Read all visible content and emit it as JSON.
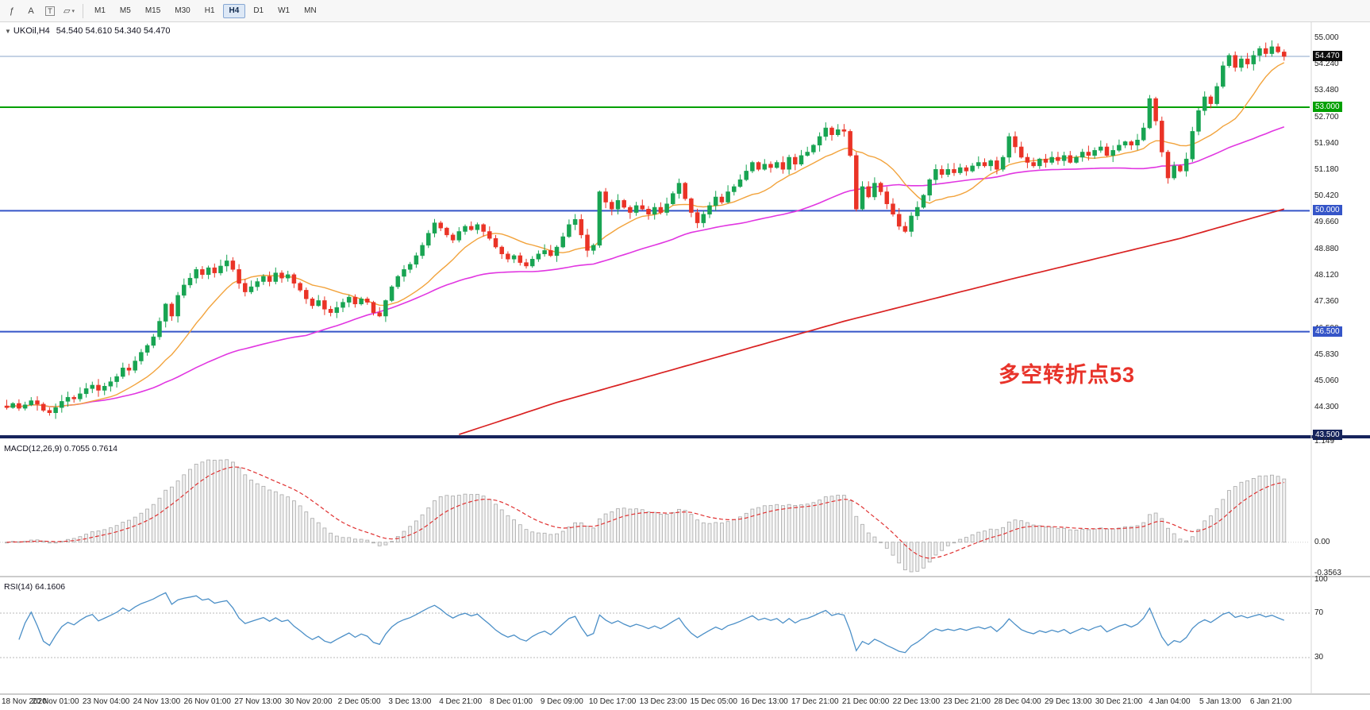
{
  "ui": {
    "toolbar": {
      "tools": [
        {
          "name": "indicators-icon",
          "glyph": "ƒ"
        },
        {
          "name": "text-tool-icon",
          "glyph": "A"
        },
        {
          "name": "label-tool-icon",
          "glyph": "T",
          "boxed": true
        },
        {
          "name": "shapes-tool-icon",
          "glyph": "▱",
          "caret": true
        }
      ],
      "timeframes": [
        {
          "label": "M1"
        },
        {
          "label": "M5"
        },
        {
          "label": "M15"
        },
        {
          "label": "M30"
        },
        {
          "label": "H1"
        },
        {
          "label": "H4",
          "active": true
        },
        {
          "label": "D1"
        },
        {
          "label": "W1"
        },
        {
          "label": "MN"
        }
      ]
    },
    "chart_header": {
      "symbol_title": "UKOil,H4",
      "ohlc_values": "54.540 54.610 54.340 54.470"
    },
    "panels": {
      "macd_label": "MACD(12,26,9) 0.7055 0.7614",
      "rsi_label": "RSI(14) 64.1606"
    },
    "annotation": {
      "text": "多空转折点53",
      "color": "#e8332a"
    }
  },
  "chart_data": {
    "type": "candlestick",
    "symbol": "UKOil",
    "timeframe": "H4",
    "ylim": [
      43.5,
      55.0
    ],
    "first_open": 44.35,
    "price_ticks": [
      55.0,
      54.24,
      53.48,
      52.7,
      51.94,
      51.18,
      50.42,
      49.66,
      48.88,
      48.12,
      47.36,
      46.59,
      45.83,
      45.06,
      44.3,
      43.53
    ],
    "levels": [
      {
        "price": 54.47,
        "label": "54.470",
        "color": "#8aa4c8",
        "badge_bg": "#0b0b0b",
        "line_width": 1
      },
      {
        "price": 53.0,
        "label": "53.000",
        "color": "#00a000",
        "badge_bg": "#00a000",
        "line_width": 2
      },
      {
        "price": 50.0,
        "label": "50.000",
        "color": "#3555c8",
        "badge_bg": "#3555c8",
        "line_width": 2
      },
      {
        "price": 46.5,
        "label": "46.500",
        "color": "#3555c8",
        "badge_bg": "#3555c8",
        "line_width": 2
      },
      {
        "price": 43.5,
        "label": "43.500",
        "color": "#16245c",
        "badge_bg": "#16245c",
        "line_width": 0
      }
    ],
    "colors": {
      "up": "#18a452",
      "down": "#ea3326"
    },
    "ma": {
      "fast_period": 13,
      "fast_color": "#f2a33c",
      "mid_period": 50,
      "mid_color": "#e136e1",
      "slow_color": "#d92121",
      "slow_points": [
        [
          74,
          43.52
        ],
        [
          90,
          44.45
        ],
        [
          110,
          45.45
        ],
        [
          137,
          46.8
        ],
        [
          165,
          48.05
        ],
        [
          192,
          49.2
        ],
        [
          209,
          50.05
        ]
      ]
    },
    "closes": [
      44.3,
      44.42,
      44.28,
      44.38,
      44.5,
      44.4,
      44.22,
      44.15,
      44.3,
      44.48,
      44.6,
      44.55,
      44.7,
      44.85,
      44.95,
      44.8,
      44.92,
      45.05,
      45.2,
      45.45,
      45.38,
      45.65,
      45.9,
      46.1,
      46.35,
      46.8,
      47.3,
      46.95,
      47.55,
      47.85,
      48.05,
      48.3,
      48.15,
      48.35,
      48.2,
      48.4,
      48.55,
      48.3,
      47.9,
      47.65,
      47.8,
      47.95,
      48.1,
      47.95,
      48.2,
      48.05,
      48.15,
      47.9,
      47.7,
      47.45,
      47.25,
      47.4,
      47.15,
      47.05,
      47.2,
      47.35,
      47.5,
      47.3,
      47.45,
      47.35,
      47.05,
      46.95,
      47.4,
      47.8,
      48.1,
      48.3,
      48.45,
      48.7,
      49.0,
      49.35,
      49.65,
      49.5,
      49.3,
      49.15,
      49.4,
      49.55,
      49.45,
      49.6,
      49.4,
      49.2,
      48.95,
      48.75,
      48.6,
      48.7,
      48.5,
      48.4,
      48.6,
      48.75,
      48.85,
      48.7,
      48.95,
      49.25,
      49.6,
      49.75,
      49.3,
      48.85,
      49.0,
      50.55,
      50.25,
      50.05,
      50.3,
      50.1,
      49.95,
      50.15,
      50.05,
      49.9,
      50.1,
      49.95,
      50.2,
      50.5,
      50.8,
      50.35,
      49.95,
      49.65,
      49.9,
      50.15,
      50.4,
      50.25,
      50.55,
      50.7,
      50.9,
      51.15,
      51.4,
      51.2,
      51.35,
      51.25,
      51.4,
      51.2,
      51.55,
      51.35,
      51.6,
      51.7,
      51.9,
      52.15,
      52.4,
      52.2,
      52.35,
      52.3,
      51.6,
      50.05,
      50.7,
      50.4,
      50.8,
      50.55,
      50.2,
      49.9,
      49.55,
      49.4,
      49.85,
      50.1,
      50.45,
      50.9,
      51.2,
      51.05,
      51.2,
      51.1,
      51.25,
      51.15,
      51.3,
      51.4,
      51.3,
      51.45,
      51.2,
      51.55,
      52.15,
      51.85,
      51.55,
      51.4,
      51.3,
      51.5,
      51.4,
      51.55,
      51.45,
      51.6,
      51.4,
      51.55,
      51.7,
      51.6,
      51.75,
      51.85,
      51.6,
      51.75,
      51.9,
      52.0,
      51.9,
      52.05,
      52.4,
      53.25,
      52.6,
      51.7,
      50.95,
      51.3,
      51.15,
      51.5,
      52.3,
      52.9,
      53.3,
      53.1,
      53.6,
      54.2,
      54.5,
      54.15,
      54.4,
      54.25,
      54.5,
      54.7,
      54.55,
      54.75,
      54.6,
      54.47
    ],
    "indicators": {
      "macd": {
        "fast": 12,
        "slow": 26,
        "signal": 9,
        "value_main": 0.7055,
        "value_signal": 0.7614,
        "scale_max": 1.149,
        "scale_min": -0.3563,
        "tick_values": [
          1.149,
          0,
          -0.3563
        ],
        "ticks": [
          "1.149",
          "0.00",
          "-0.3563"
        ],
        "hist_fill": "#f1f1f1",
        "hist_stroke": "#a8a8a8",
        "signal_color": "#e03131"
      },
      "rsi": {
        "period": 14,
        "value": 64.1606,
        "levels": [
          70,
          30
        ],
        "tick_values": [
          100,
          70,
          30
        ],
        "ticks": [
          "100",
          "70",
          "30"
        ],
        "line_color": "#4b8fc7",
        "level_color": "#b9b9b9"
      }
    },
    "x_labels": [
      "18 Nov 2020",
      "20 Nov 01:00",
      "23 Nov 04:00",
      "24 Nov 13:00",
      "26 Nov 01:00",
      "27 Nov 13:00",
      "30 Nov 20:00",
      "2 Dec 05:00",
      "3 Dec 13:00",
      "4 Dec 21:00",
      "8 Dec 01:00",
      "9 Dec 09:00",
      "10 Dec 17:00",
      "13 Dec 23:00",
      "15 Dec 05:00",
      "16 Dec 13:00",
      "17 Dec 21:00",
      "21 Dec 00:00",
      "22 Dec 13:00",
      "23 Dec 21:00",
      "28 Dec 04:00",
      "29 Dec 13:00",
      "30 Dec 21:00",
      "4 Jan 04:00",
      "5 Jan 13:00",
      "6 Jan 21:00"
    ]
  }
}
